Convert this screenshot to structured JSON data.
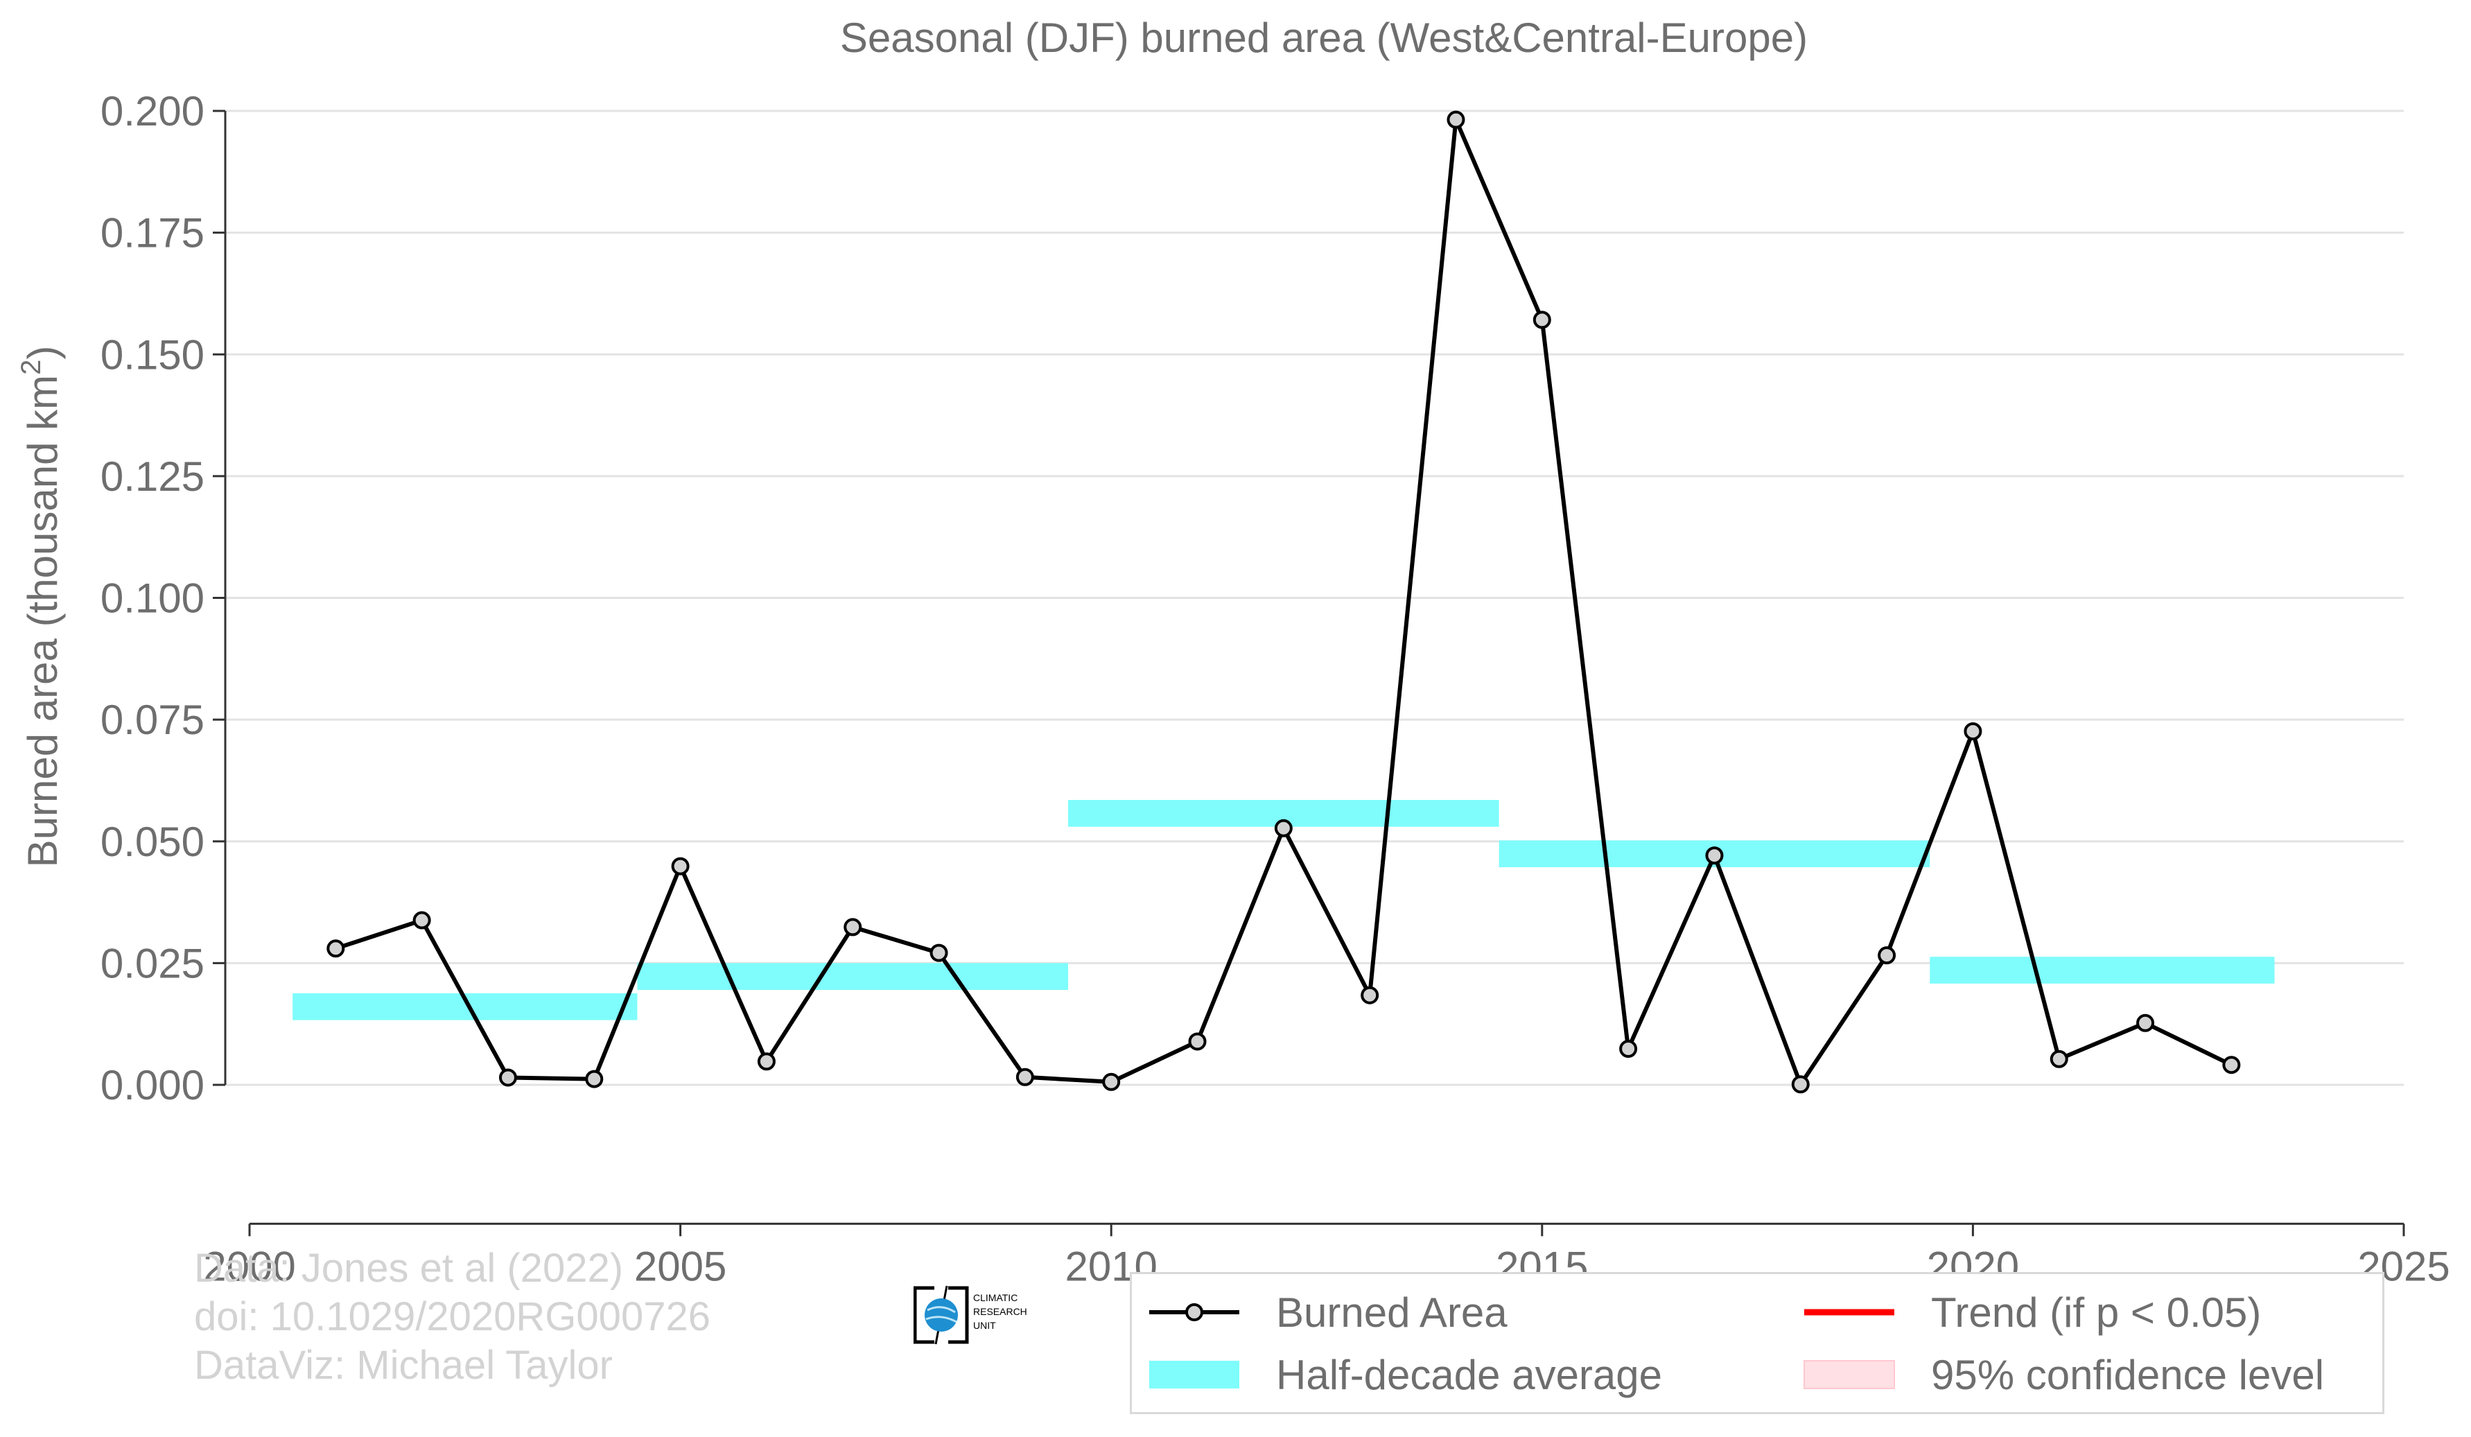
{
  "chart_data": {
    "type": "line",
    "title": "Seasonal (DJF) burned area (West&Central-Europe)",
    "ylabel": "Burned area (thousand km",
    "ylabel_sup": "2",
    "ylabel_tail": ")",
    "xlim": [
      2000,
      2025
    ],
    "ylim": [
      -0.015,
      0.2
    ],
    "x_ticks": [
      2000,
      2005,
      2010,
      2015,
      2020,
      2025
    ],
    "y_ticks": [
      0.0,
      0.025,
      0.05,
      0.075,
      0.1,
      0.125,
      0.15,
      0.175,
      0.2
    ],
    "y_tick_labels": [
      "0.000",
      "0.025",
      "0.050",
      "0.075",
      "0.100",
      "0.125",
      "0.150",
      "0.175",
      "0.200"
    ],
    "grid": "horizontal",
    "series": [
      {
        "name": "Burned Area",
        "x": [
          2001,
          2002,
          2003,
          2004,
          2005,
          2006,
          2007,
          2008,
          2009,
          2010,
          2011,
          2012,
          2013,
          2014,
          2015,
          2016,
          2017,
          2018,
          2019,
          2020,
          2021,
          2022,
          2023
        ],
        "values": [
          0.028,
          0.0338,
          0.0015,
          0.0012,
          0.0449,
          0.0048,
          0.0324,
          0.0271,
          0.0016,
          0.0006,
          0.0089,
          0.0527,
          0.0184,
          0.1982,
          0.1571,
          0.0074,
          0.0471,
          0.0001,
          0.0266,
          0.0726,
          0.0053,
          0.0127,
          0.0041
        ],
        "color": "#000000",
        "marker_fill": "#d3d3d3"
      }
    ],
    "half_decade_average": [
      {
        "x_start": 2000.5,
        "x_end": 2004.5,
        "y_low": 0.0133,
        "y_high": 0.0188
      },
      {
        "x_start": 2004.5,
        "x_end": 2009.5,
        "y_low": 0.0195,
        "y_high": 0.025
      },
      {
        "x_start": 2009.5,
        "x_end": 2014.5,
        "y_low": 0.053,
        "y_high": 0.0585
      },
      {
        "x_start": 2014.5,
        "x_end": 2019.5,
        "y_low": 0.0447,
        "y_high": 0.0502
      },
      {
        "x_start": 2019.5,
        "x_end": 2023.5,
        "y_low": 0.0208,
        "y_high": 0.0263
      }
    ],
    "half_decade_color": "#7ffcfc",
    "legend": {
      "placement": "bottom-right",
      "entries": [
        {
          "label": "Burned Area",
          "key": "line-marker",
          "color": "#000000"
        },
        {
          "label": "Trend (if p < 0.05)",
          "key": "line",
          "color": "#ff0000"
        },
        {
          "label": "Half-decade average",
          "key": "band",
          "color": "#7ffcfc"
        },
        {
          "label": "95% confidence level",
          "key": "band",
          "color": "#ffe0e4"
        }
      ]
    }
  },
  "footer": {
    "line1": "Data: Jones et al (2022)",
    "line2": "doi: 10.1029/2020RG000726",
    "line3": "DataViz: Michael Taylor"
  },
  "logo": {
    "line1": "CLIMATIC",
    "line2": "RESEARCH",
    "line3": "UNIT"
  }
}
